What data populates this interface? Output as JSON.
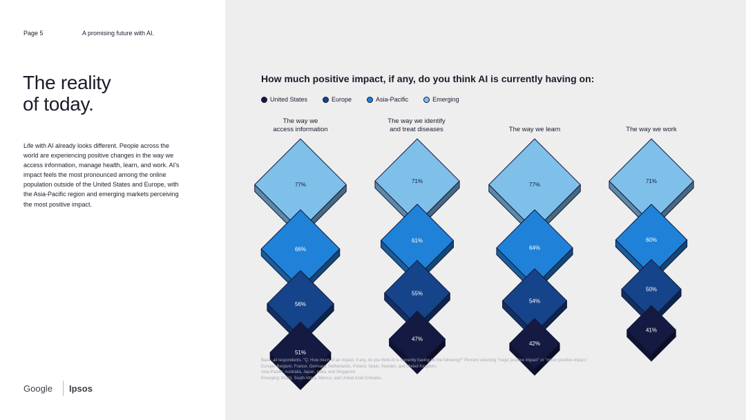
{
  "header": {
    "page_label": "Page 5",
    "section_title": "A promising future with AI."
  },
  "left_panel": {
    "title_line1": "The reality",
    "title_line2": "of today.",
    "intro": "Life with AI already looks different. People across the world are experiencing positive changes in the way we access information, manage health, learn, and work. AI's impact feels the most pronounced among the online population outside of the United States and Europe, with the Asia-Pacific region and emerging markets perceiving the most positive impact."
  },
  "footer_brands": {
    "google": "Google",
    "ipsos": "Ipsos"
  },
  "colors": {
    "United States": "#141a42",
    "Europe": "#16448a",
    "Asia-Pacific": "#1f82d8",
    "Emerging": "#7fc0ea",
    "panel": "#eeeeef"
  },
  "chart_data": {
    "type": "bar",
    "title": "How much positive impact, if any, do you think AI is currently having on:",
    "categories": [
      [
        "The way we",
        "access information"
      ],
      [
        "The way we identify",
        "and treat diseases"
      ],
      [
        "The way we learn"
      ],
      [
        "The way we work"
      ]
    ],
    "series": [
      {
        "name": "Emerging",
        "values": [
          77,
          71,
          77,
          71
        ],
        "labels": [
          "77%",
          "71%",
          "77%",
          "71%"
        ]
      },
      {
        "name": "Asia-Pacific",
        "values": [
          66,
          61,
          64,
          60
        ],
        "labels": [
          "66%",
          "61%",
          "64%",
          "60%"
        ]
      },
      {
        "name": "Europe",
        "values": [
          56,
          55,
          54,
          50
        ],
        "labels": [
          "56%",
          "55%",
          "54%",
          "50%"
        ]
      },
      {
        "name": "United States",
        "values": [
          51,
          47,
          42,
          41
        ],
        "labels": [
          "51%",
          "47%",
          "42%",
          "41%"
        ]
      }
    ],
    "legend": [
      "United States",
      "Europe",
      "Asia-Pacific",
      "Emerging"
    ]
  },
  "footnote": {
    "line1": "Base: all respondents. \"Q. How much of an impact, if any, do you think AI is currently having on the following?\" Percent selecting \"major positive impact\" or \"minor positive impact.\"",
    "line2": "Europe: Belgium, France, Germany, Netherlands, Poland, Spain, Sweden, and United Kingdom.",
    "line3": "Asia-Pacific: Australia, Japan, India, and Singapore.",
    "line4": "Emerging: Brazil, South Africa, Mexico, and United Arab Emirates."
  }
}
